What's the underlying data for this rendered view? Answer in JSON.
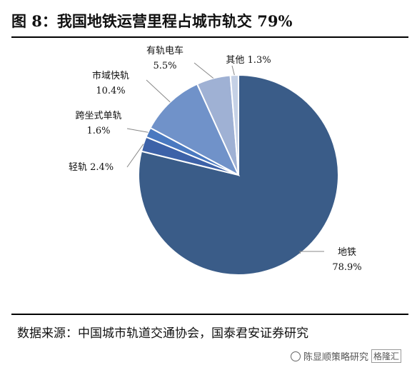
{
  "header": {
    "title": "图 8：我国地铁运营里程占城市轨交 79%"
  },
  "chart_data": {
    "type": "pie",
    "title": "图 8：我国地铁运营里程占城市轨交 79%",
    "slices": [
      {
        "label": "地铁",
        "value_label": "78.9%",
        "value": 78.9,
        "color": "#3a5c88"
      },
      {
        "label": "轻轨",
        "value_label": "2.4%",
        "value": 2.4,
        "color": "#3d62a8"
      },
      {
        "label": "跨坐式单轨",
        "value_label": "1.6%",
        "value": 1.6,
        "color": "#4a79c0"
      },
      {
        "label": "市域快轨",
        "value_label": "10.4%",
        "value": 10.4,
        "color": "#7092c9"
      },
      {
        "label": "有轨电车",
        "value_label": "5.5%",
        "value": 5.5,
        "color": "#9fb1d4"
      },
      {
        "label": "其他",
        "value_label": "1.3%",
        "value": 1.3,
        "color": "#c5d1e6"
      }
    ]
  },
  "footer": {
    "source": "数据来源：中国城市轨道交通协会，国泰君安证券研究",
    "watermark_author": "陈显顺策略研究",
    "watermark_brand": "格隆汇"
  }
}
